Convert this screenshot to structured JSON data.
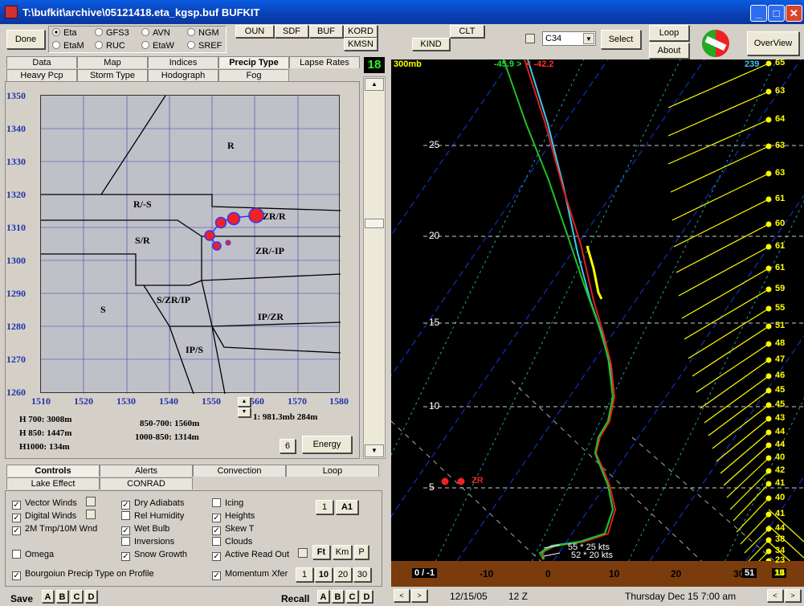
{
  "window": {
    "title": "T:\\bufkit\\archive\\05121418.eta_kgsp.buf BUFKIT"
  },
  "toolbar": {
    "done": "Done",
    "models": [
      {
        "label": "Eta",
        "selected": true
      },
      {
        "label": "GFS3",
        "selected": false
      },
      {
        "label": "AVN",
        "selected": false
      },
      {
        "label": "NGM",
        "selected": false
      },
      {
        "label": "EtaM",
        "selected": false
      },
      {
        "label": "RUC",
        "selected": false
      },
      {
        "label": "EtaW",
        "selected": false
      },
      {
        "label": "SREF",
        "selected": false
      }
    ],
    "stations1": [
      "OUN",
      "SDF",
      "BUF",
      "KORD"
    ],
    "station_kmsn": "KMSN",
    "station_kind": "KIND",
    "station_clt": "CLT",
    "combo": "C34",
    "select": "Select",
    "loop": "Loop",
    "about": "About",
    "overview": "OverView"
  },
  "tabs": {
    "row1": [
      "Data",
      "Map",
      "Indices",
      "Precip Type",
      "Lapse Rates"
    ],
    "row2": [
      "Heavy Pcp",
      "Storm Type",
      "Hodograph",
      "Fog"
    ],
    "selected": "Precip Type",
    "counter": "18"
  },
  "precip_plot": {
    "y_ticks": [
      "1350",
      "1340",
      "1330",
      "1320",
      "1310",
      "1300",
      "1290",
      "1280",
      "1270",
      "1260"
    ],
    "x_ticks": [
      "1510",
      "1520",
      "1530",
      "1540",
      "1550",
      "1560",
      "1570",
      "1580"
    ],
    "zones": [
      "R",
      "R/-S",
      "ZR/R",
      "S/R",
      "ZR/-IP",
      "S",
      "S/ZR/IP",
      "IP/ZR",
      "IP/S"
    ],
    "h700": "H 700: 3008m",
    "h850": "H 850: 1447m",
    "h1000": "H1000: 134m",
    "t1": "850-700: 1560m",
    "t2": "1000-850: 1314m",
    "readout": "1: 981.3mb 284m",
    "six": "6",
    "energy": "Energy"
  },
  "lower_tabs": {
    "row1": [
      "Controls",
      "Alerts",
      "Convection",
      "Loop"
    ],
    "row2": [
      "Lake Effect",
      "CONRAD"
    ],
    "selected": "Controls"
  },
  "controls": {
    "col1": [
      {
        "label": "Vector Winds",
        "checked": true
      },
      {
        "label": "Digital Winds",
        "checked": true
      },
      {
        "label": "2M Tmp/10M Wnd",
        "checked": true
      },
      {
        "label": "Omega",
        "checked": false
      },
      {
        "label": "Bourgoiun  Precip Type on Profile",
        "checked": true
      }
    ],
    "col2": [
      {
        "label": "Dry Adiabats",
        "checked": true
      },
      {
        "label": "Rel Humidity",
        "checked": false
      },
      {
        "label": "Wet Bulb",
        "checked": true
      },
      {
        "label": "Inversions",
        "checked": false
      },
      {
        "label": "Snow Growth",
        "checked": true
      }
    ],
    "col3": [
      {
        "label": "Icing",
        "checked": false
      },
      {
        "label": "Heights",
        "checked": true
      },
      {
        "label": "Skew T",
        "checked": true
      },
      {
        "label": "Clouds",
        "checked": false
      },
      {
        "label": "Active Read Out",
        "checked": true
      },
      {
        "label": "Momentum Xfer",
        "checked": true
      }
    ],
    "btn_1": "1",
    "btn_a1": "A1",
    "ft": "Ft",
    "km": "Km",
    "p": "P",
    "mom": [
      "1",
      "10",
      "20",
      "30"
    ]
  },
  "footer": {
    "save": "Save",
    "recall": "Recall",
    "slots": [
      "A",
      "B",
      "C",
      "D"
    ],
    "date": "12/15/05",
    "hour": "12 Z",
    "valid": "Thursday   Dec 15  7:00 am"
  },
  "skewt": {
    "top_left": "300mb",
    "top_t": "-45.9 >",
    "top_td": "< -42.2",
    "top_right": "239",
    "y_labels": [
      "25",
      "20",
      "15",
      "10",
      "5"
    ],
    "x_labels": [
      "-10",
      "0",
      "10",
      "20",
      "30"
    ],
    "x_left": "0 / -1",
    "x_right": "51",
    "x_right2": "15",
    "zr": "ZR",
    "wind1": "55 * 25 kts",
    "wind2": "52 * 20 kts",
    "wind_labels": [
      "65",
      "63",
      "64",
      "63",
      "63",
      "61",
      "60",
      "61",
      "61",
      "59",
      "55",
      "51",
      "48",
      "47",
      "46",
      "45",
      "45",
      "43",
      "44",
      "44",
      "40",
      "42",
      "41",
      "40",
      "41",
      "44",
      "38",
      "34",
      "23",
      "14"
    ]
  },
  "colors": {
    "temp": "#e02020",
    "dew": "#20c020",
    "wetbulb": "#40c8f0",
    "wind": "#ffff00",
    "dryadiabat": "#1030c0",
    "moistadiabat": "#20a0a0"
  }
}
